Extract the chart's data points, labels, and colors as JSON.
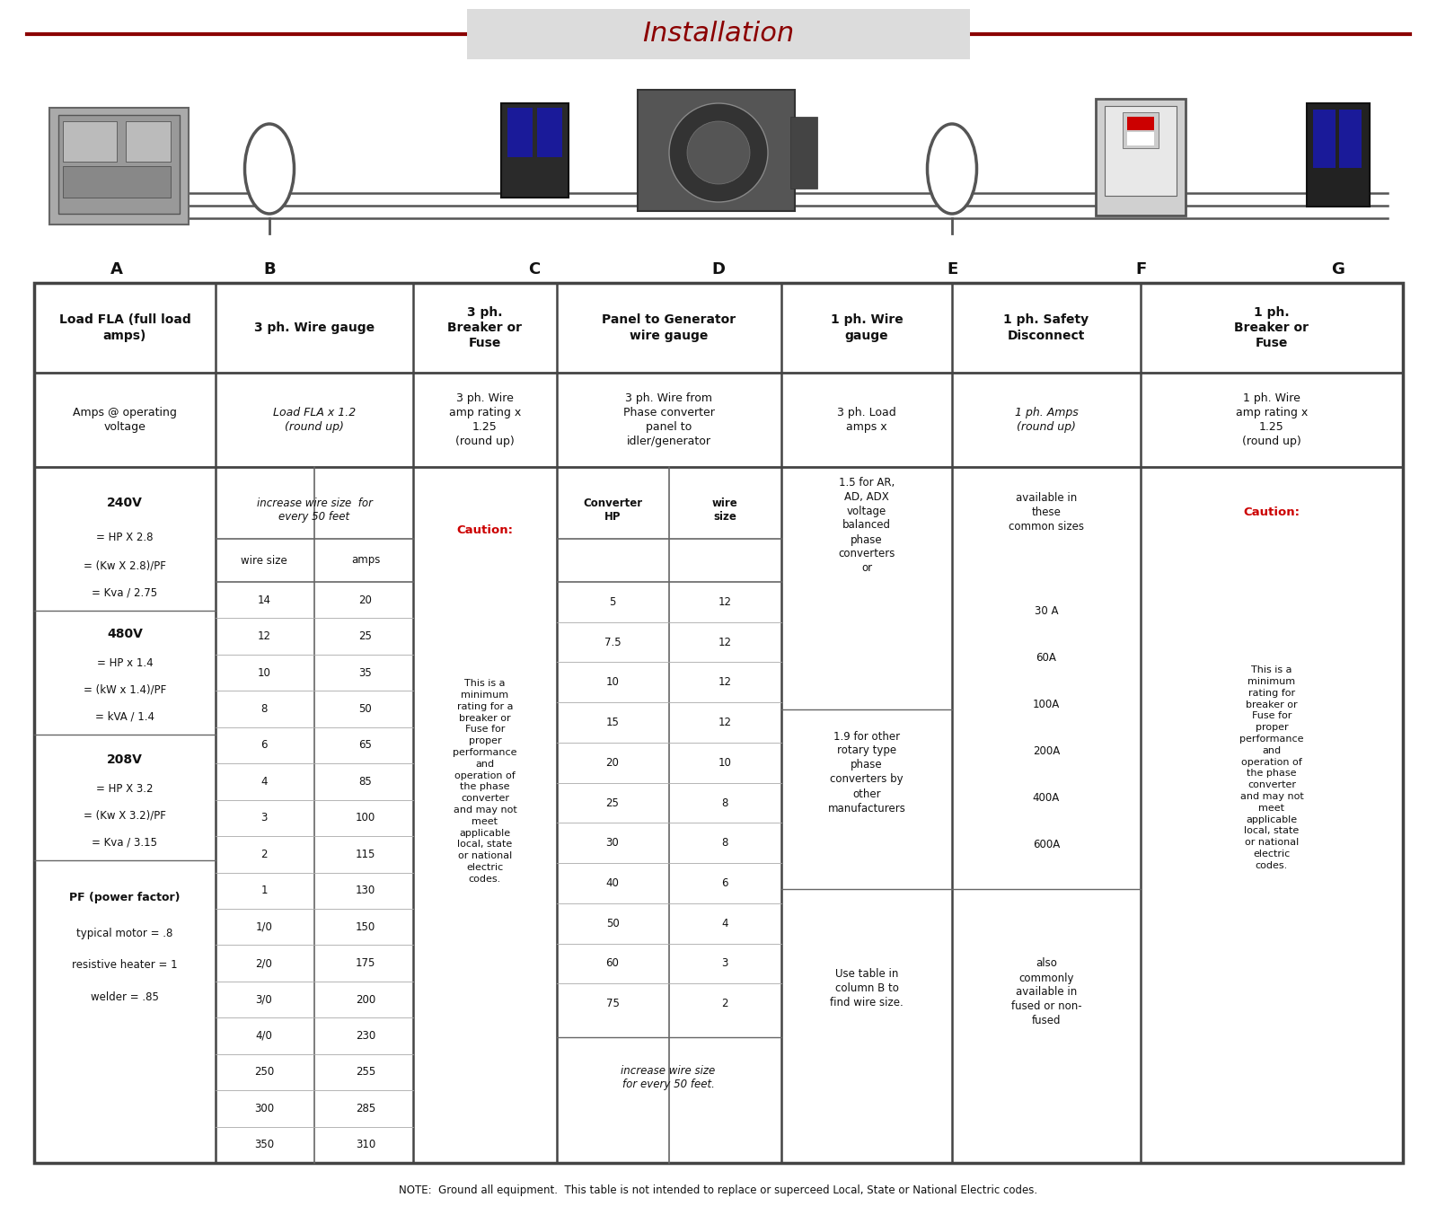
{
  "title": "Installation",
  "title_color": "#8B0000",
  "title_bg": "#DCDCDC",
  "title_line_color": "#8B0000",
  "col_labels": [
    "A",
    "B",
    "C",
    "D",
    "E",
    "F",
    "G"
  ],
  "note": "NOTE:  Ground all equipment.  This table is not intended to replace or superceed Local, State or National Electric codes.",
  "bg_color": "white",
  "border_color": "#444444",
  "text_color": "#111111",
  "caution_color": "#CC0000",
  "wire_data": [
    [
      "14",
      "20"
    ],
    [
      "12",
      "25"
    ],
    [
      "10",
      "35"
    ],
    [
      "8",
      "50"
    ],
    [
      "6",
      "65"
    ],
    [
      "4",
      "85"
    ],
    [
      "3",
      "100"
    ],
    [
      "2",
      "115"
    ],
    [
      "1",
      "130"
    ],
    [
      "1/0",
      "150"
    ],
    [
      "2/0",
      "175"
    ],
    [
      "3/0",
      "200"
    ],
    [
      "4/0",
      "230"
    ],
    [
      "250",
      "255"
    ],
    [
      "300",
      "285"
    ],
    [
      "350",
      "310"
    ]
  ],
  "hp_wire": [
    [
      "5",
      "12"
    ],
    [
      "7.5",
      "12"
    ],
    [
      "10",
      "12"
    ],
    [
      "15",
      "12"
    ],
    [
      "20",
      "10"
    ],
    [
      "25",
      "8"
    ],
    [
      "30",
      "8"
    ],
    [
      "40",
      "6"
    ],
    [
      "50",
      "4"
    ],
    [
      "60",
      "3"
    ],
    [
      "75",
      "2"
    ]
  ],
  "f_sizes": [
    "30 A",
    "60A",
    "100A",
    "200A",
    "400A",
    "600A"
  ]
}
